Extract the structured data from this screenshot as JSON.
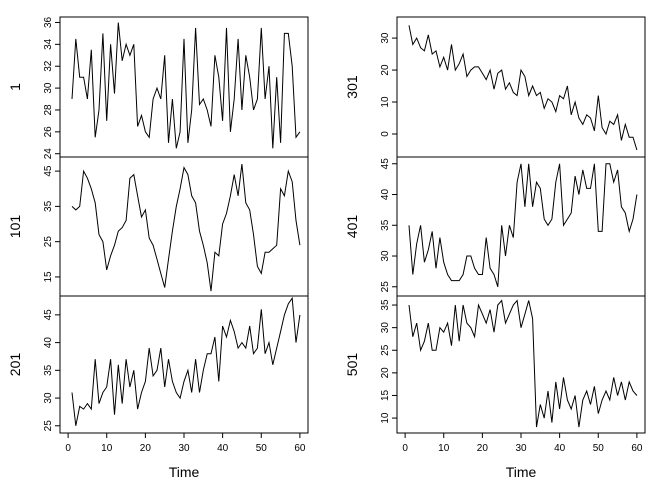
{
  "chart_data": [
    {
      "type": "line",
      "y_label": "1",
      "xlim": [
        -2.1,
        62.1
      ],
      "ylim": [
        23.7,
        36.5
      ],
      "yticks": [
        24,
        26,
        28,
        30,
        32,
        34,
        36
      ],
      "color": "#000000",
      "x": [
        1,
        2,
        3,
        4,
        5,
        6,
        7,
        8,
        9,
        10,
        11,
        12,
        13,
        14,
        15,
        16,
        17,
        18,
        19,
        20,
        21,
        22,
        23,
        24,
        25,
        26,
        27,
        28,
        29,
        30,
        31,
        32,
        33,
        34,
        35,
        36,
        37,
        38,
        39,
        40,
        41,
        42,
        43,
        44,
        45,
        46,
        47,
        48,
        49,
        50,
        51,
        52,
        53,
        54,
        55,
        56,
        57,
        58,
        59,
        60
      ],
      "values": [
        29,
        34.5,
        31,
        31,
        29,
        33.5,
        25.5,
        28,
        35,
        27,
        34,
        29.5,
        36,
        32.5,
        34,
        33,
        34,
        26.5,
        27.5,
        26,
        25.5,
        29,
        30,
        29,
        33,
        25,
        29,
        24.5,
        26,
        34.5,
        25,
        28,
        35.5,
        28.5,
        29,
        28,
        26.5,
        33,
        31,
        27,
        35.5,
        26,
        29,
        34.5,
        28,
        33,
        31,
        28,
        29,
        35.5,
        29,
        32,
        24.5,
        31,
        25,
        35,
        35,
        32,
        25.5,
        26
      ]
    },
    {
      "type": "line",
      "y_label": "101",
      "xlim": [
        -2.1,
        62.1
      ],
      "ylim": [
        9.6,
        49
      ],
      "yticks": [
        15,
        25,
        35,
        45
      ],
      "color": "#000000",
      "x": [
        1,
        2,
        3,
        4,
        5,
        6,
        7,
        8,
        9,
        10,
        11,
        12,
        13,
        14,
        15,
        16,
        17,
        18,
        19,
        20,
        21,
        22,
        23,
        24,
        25,
        26,
        27,
        28,
        29,
        30,
        31,
        32,
        33,
        34,
        35,
        36,
        37,
        38,
        39,
        40,
        41,
        42,
        43,
        44,
        45,
        46,
        47,
        48,
        49,
        50,
        51,
        52,
        53,
        54,
        55,
        56,
        57,
        58,
        59,
        60
      ],
      "values": [
        35,
        34,
        35,
        45,
        43,
        40,
        36,
        27,
        25,
        17,
        21,
        24,
        28,
        29,
        31,
        43,
        44,
        38,
        32,
        34,
        26,
        24,
        20,
        16,
        12,
        20,
        28,
        35,
        40,
        46,
        44,
        38,
        36,
        28,
        24,
        19,
        11,
        22,
        21,
        30,
        33,
        38,
        44,
        38,
        47,
        36,
        34,
        27,
        18,
        16,
        22,
        22,
        23,
        24,
        40,
        38,
        45,
        42,
        31,
        24
      ]
    },
    {
      "type": "line",
      "y_label": "201",
      "x_label": "Time",
      "xlim": [
        -2.1,
        62.1
      ],
      "xticks": [
        0,
        10,
        20,
        30,
        40,
        50,
        60
      ],
      "ylim": [
        23.7,
        48.4
      ],
      "yticks": [
        25,
        30,
        35,
        40,
        45
      ],
      "color": "#000000",
      "x": [
        1,
        2,
        3,
        4,
        5,
        6,
        7,
        8,
        9,
        10,
        11,
        12,
        13,
        14,
        15,
        16,
        17,
        18,
        19,
        20,
        21,
        22,
        23,
        24,
        25,
        26,
        27,
        28,
        29,
        30,
        31,
        32,
        33,
        34,
        35,
        36,
        37,
        38,
        39,
        40,
        41,
        42,
        43,
        44,
        45,
        46,
        47,
        48,
        49,
        50,
        51,
        52,
        53,
        54,
        55,
        56,
        57,
        58,
        59,
        60
      ],
      "values": [
        31,
        25,
        28.5,
        28,
        29,
        28,
        37,
        29,
        31,
        32,
        37,
        27,
        36,
        29,
        37,
        32,
        35,
        28,
        31,
        33,
        39,
        34,
        35,
        39,
        32,
        37,
        33,
        31,
        30,
        33,
        35,
        31,
        37,
        31,
        35,
        38,
        38,
        41,
        33,
        43,
        41,
        44,
        42,
        39,
        40,
        39,
        43,
        38,
        39,
        46,
        38,
        40,
        36,
        39,
        42,
        45,
        47,
        48,
        40,
        45
      ]
    },
    {
      "type": "line",
      "y_label": "301",
      "xlim": [
        -2.1,
        62.1
      ],
      "ylim": [
        -7.2,
        36.6
      ],
      "yticks": [
        0,
        10,
        20,
        30
      ],
      "color": "#000000",
      "x": [
        1,
        2,
        3,
        4,
        5,
        6,
        7,
        8,
        9,
        10,
        11,
        12,
        13,
        14,
        15,
        16,
        17,
        18,
        19,
        20,
        21,
        22,
        23,
        24,
        25,
        26,
        27,
        28,
        29,
        30,
        31,
        32,
        33,
        34,
        35,
        36,
        37,
        38,
        39,
        40,
        41,
        42,
        43,
        44,
        45,
        46,
        47,
        48,
        49,
        50,
        51,
        52,
        53,
        54,
        55,
        56,
        57,
        58,
        59,
        60
      ],
      "values": [
        34,
        28,
        30,
        27,
        26,
        31,
        25,
        26,
        21,
        24,
        20,
        28,
        20,
        22,
        25,
        18,
        20,
        21,
        21,
        19,
        17,
        20,
        14,
        19,
        20,
        14,
        16,
        13,
        12,
        20,
        18,
        12,
        15,
        12,
        13,
        8,
        11,
        10,
        7,
        12,
        11,
        15,
        6,
        10,
        5,
        3,
        6,
        5,
        1,
        12,
        2,
        0,
        4,
        3,
        6,
        -2,
        3,
        -1,
        -1,
        -5
      ]
    },
    {
      "type": "line",
      "y_label": "401",
      "xlim": [
        -2.1,
        62.1
      ],
      "ylim": [
        23.5,
        46.1
      ],
      "yticks": [
        25,
        30,
        35,
        40,
        45
      ],
      "color": "#000000",
      "x": [
        1,
        2,
        3,
        4,
        5,
        6,
        7,
        8,
        9,
        10,
        11,
        12,
        13,
        14,
        15,
        16,
        17,
        18,
        19,
        20,
        21,
        22,
        23,
        24,
        25,
        26,
        27,
        28,
        29,
        30,
        31,
        32,
        33,
        34,
        35,
        36,
        37,
        38,
        39,
        40,
        41,
        42,
        43,
        44,
        45,
        46,
        47,
        48,
        49,
        50,
        51,
        52,
        53,
        54,
        55,
        56,
        57,
        58,
        59,
        60
      ],
      "values": [
        35,
        27,
        32,
        35,
        29,
        31,
        34,
        28,
        33,
        29,
        27,
        26,
        26,
        26,
        27,
        30,
        30,
        28,
        27,
        27,
        33,
        28,
        27,
        25,
        35,
        30,
        35,
        33,
        42,
        45,
        38,
        45,
        38,
        42,
        41,
        36,
        35,
        36,
        42,
        45,
        35,
        36,
        37,
        43,
        40,
        44,
        41,
        41,
        45,
        34,
        34,
        45,
        45,
        42,
        44,
        38,
        37,
        34,
        36,
        40
      ]
    },
    {
      "type": "line",
      "y_label": "501",
      "x_label": "Time",
      "xlim": [
        -2.1,
        62.1
      ],
      "xticks": [
        0,
        10,
        20,
        30,
        40,
        50,
        60
      ],
      "ylim": [
        6.7,
        37
      ],
      "yticks": [
        10,
        15,
        20,
        25,
        30,
        35
      ],
      "color": "#000000",
      "x": [
        1,
        2,
        3,
        4,
        5,
        6,
        7,
        8,
        9,
        10,
        11,
        12,
        13,
        14,
        15,
        16,
        17,
        18,
        19,
        20,
        21,
        22,
        23,
        24,
        25,
        26,
        27,
        28,
        29,
        30,
        31,
        32,
        33,
        34,
        35,
        36,
        37,
        38,
        39,
        40,
        41,
        42,
        43,
        44,
        45,
        46,
        47,
        48,
        49,
        50,
        51,
        52,
        53,
        54,
        55,
        56,
        57,
        58,
        59,
        60
      ],
      "values": [
        35,
        28,
        31,
        25,
        27,
        31,
        25,
        25,
        30,
        29,
        31,
        26,
        35,
        27,
        35,
        31,
        30,
        28,
        35,
        33,
        31,
        34,
        29,
        35,
        36,
        31,
        33,
        35,
        36,
        30,
        33,
        36,
        32,
        8,
        13,
        10,
        16,
        9,
        18,
        12,
        19,
        14,
        12,
        15,
        8,
        14,
        16,
        13,
        17,
        11,
        14,
        16,
        14,
        19,
        15,
        18,
        14,
        18,
        16,
        15
      ]
    }
  ]
}
